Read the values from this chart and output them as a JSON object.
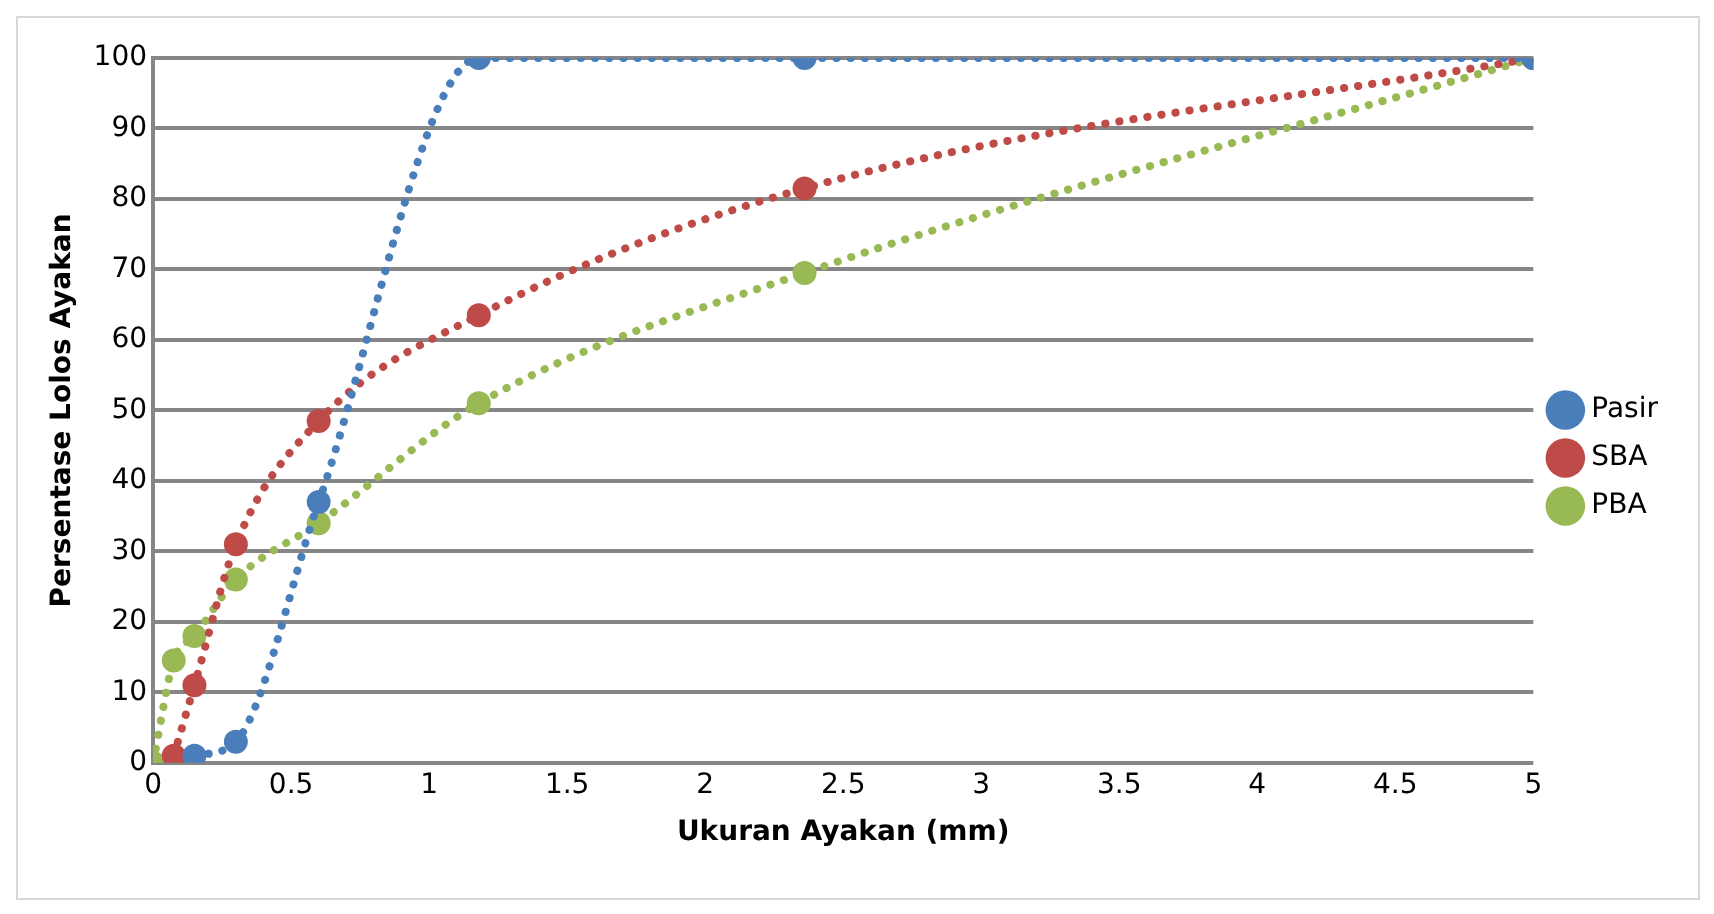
{
  "chart_data": {
    "type": "line",
    "xlabel": "Ukuran Ayakan (mm)",
    "ylabel": "Persentase Lolos Ayakan",
    "xlim": [
      0,
      5
    ],
    "xticks": [
      0,
      0.5,
      1,
      1.5,
      2,
      2.5,
      3,
      3.5,
      4,
      4.5,
      5
    ],
    "ylim": [
      0,
      100
    ],
    "yticks": [
      0,
      10,
      20,
      30,
      40,
      50,
      60,
      70,
      80,
      90,
      100
    ],
    "grid": "y",
    "legend": "right",
    "marker": "circle",
    "line_style": "dotted",
    "series": [
      {
        "name": "Pasir",
        "color": "#4a7ebb",
        "x": [
          0.15,
          0.3,
          0.6,
          1.18,
          2.36,
          5
        ],
        "values": [
          1,
          3,
          37,
          100,
          100,
          100
        ]
      },
      {
        "name": "SBA",
        "color": "#be4b48",
        "x": [
          0.075,
          0.15,
          0.3,
          0.6,
          1.18,
          2.36,
          5
        ],
        "values": [
          1,
          11,
          31,
          48.5,
          63.5,
          81.5,
          100
        ]
      },
      {
        "name": "PBA",
        "color": "#98b954",
        "x": [
          0,
          0.075,
          0.15,
          0.3,
          0.6,
          1.18,
          2.36,
          5
        ],
        "values": [
          0,
          14.5,
          18,
          26,
          34,
          51,
          69.5,
          100
        ]
      }
    ]
  }
}
